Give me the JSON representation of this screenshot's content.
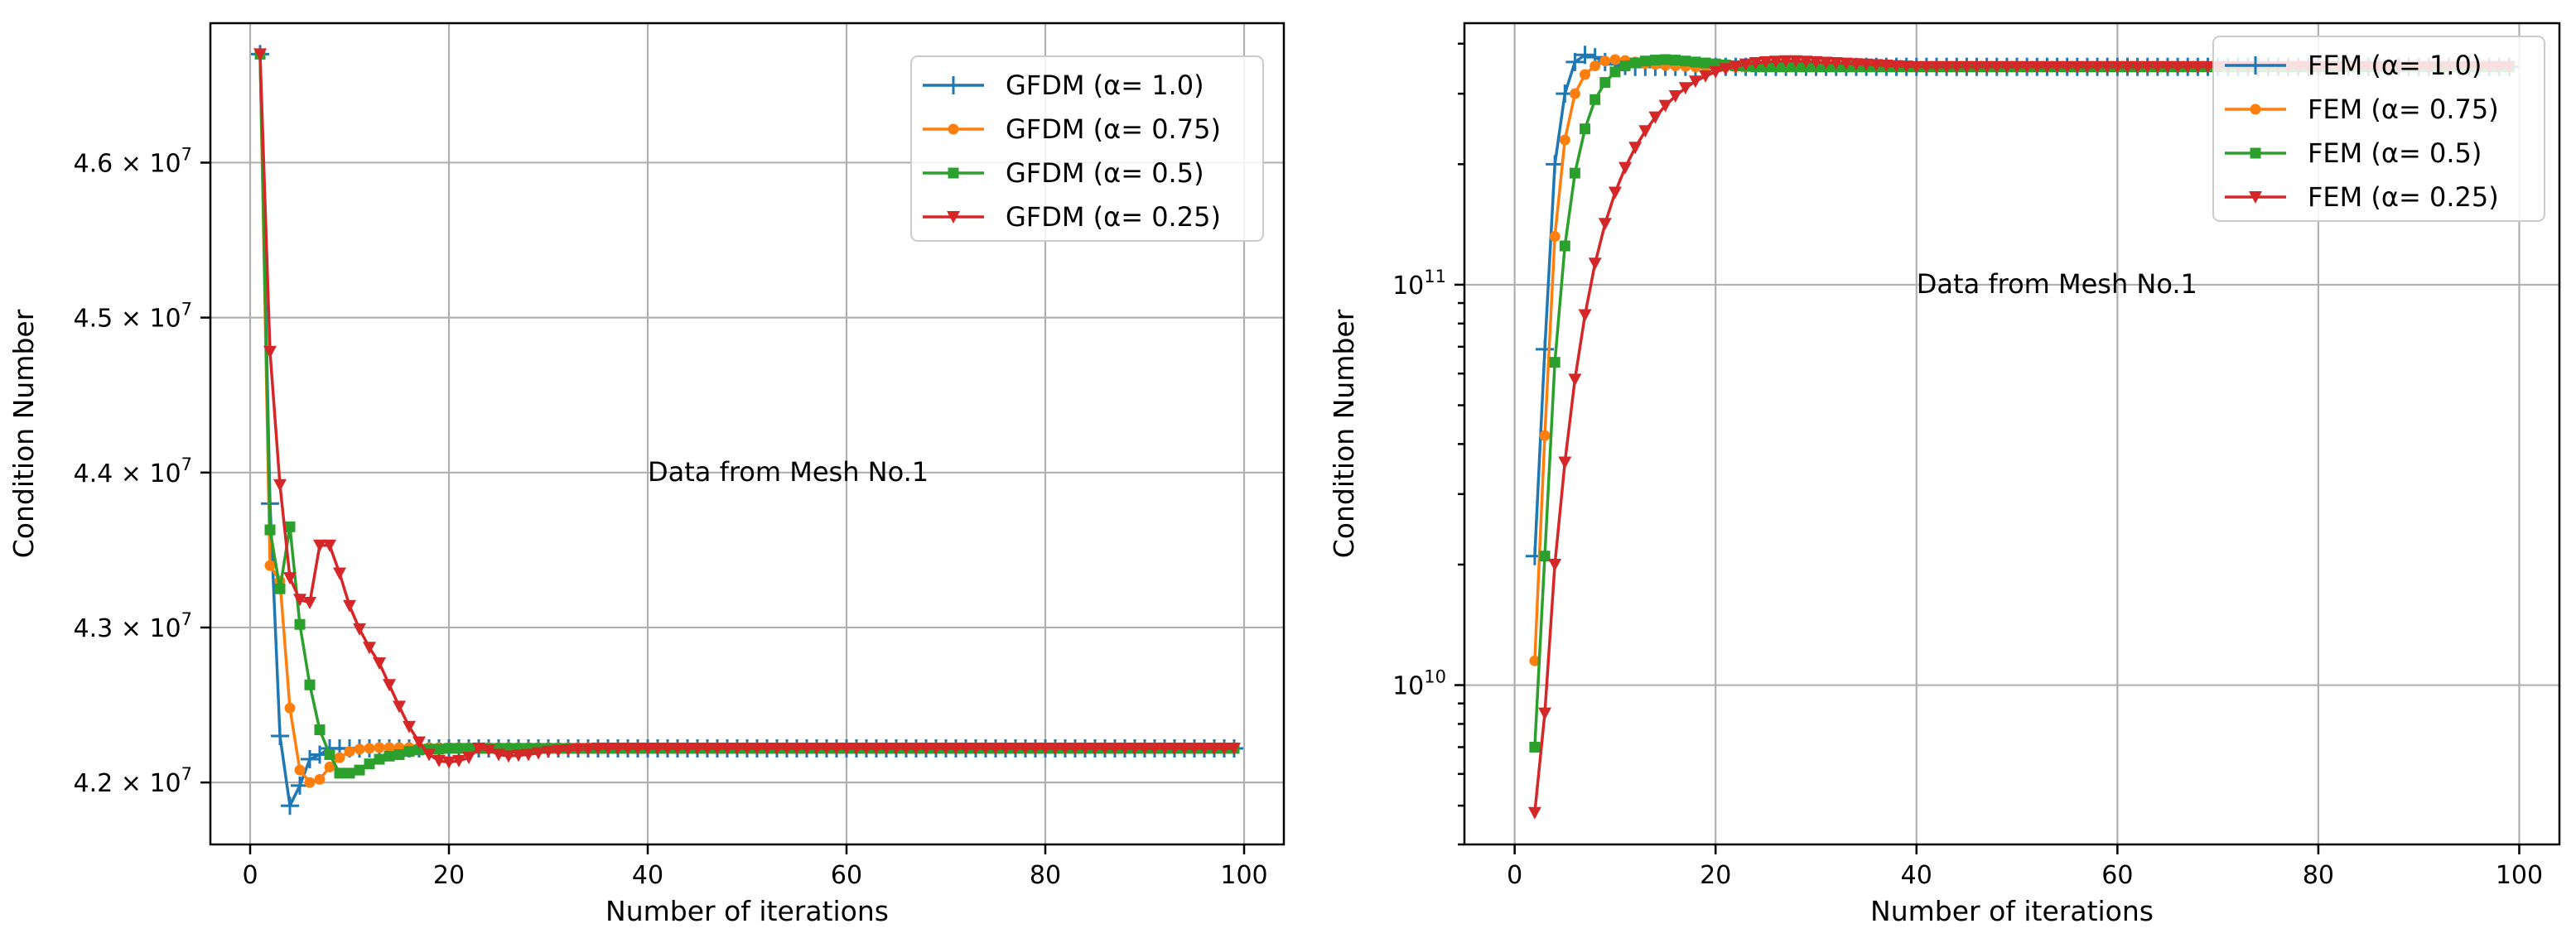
{
  "chart_data": [
    {
      "type": "line",
      "yscale": "linear",
      "xlabel": "Number of iterations",
      "ylabel": "Condition Number",
      "xlim": [
        -4,
        104
      ],
      "ylim": [
        41600000,
        46900000
      ],
      "xticks": [
        0,
        20,
        40,
        60,
        80,
        100
      ],
      "xtick_labels": [
        "0",
        "20",
        "40",
        "60",
        "80",
        "100"
      ],
      "yticks": [
        42000000,
        43000000,
        44000000,
        45000000,
        46000000
      ],
      "ytick_labels": [
        {
          "mantissa": "4.2",
          "exp": "7"
        },
        {
          "mantissa": "4.3",
          "exp": "7"
        },
        {
          "mantissa": "4.4",
          "exp": "7"
        },
        {
          "mantissa": "4.5",
          "exp": "7"
        },
        {
          "mantissa": "4.6",
          "exp": "7"
        }
      ],
      "tick_times": "×",
      "tick_base": "10",
      "grid": true,
      "legend_position": "upper right",
      "annotation": {
        "text": "Data from Mesh No.1",
        "x": 40,
        "y": 44000000
      },
      "x_start": 1,
      "x_end": 99,
      "series": [
        {
          "name": "GFDM (α= 1.0)",
          "color": "#1f77b4",
          "marker": "plus",
          "values": [
            46700000,
            43800000,
            42300000,
            41850000,
            41980000,
            42150000,
            42180000,
            42220000,
            42220000,
            42220000,
            42220000,
            42220000
          ],
          "steady": 42220000
        },
        {
          "name": "GFDM (α= 0.75)",
          "color": "#ff7f0e",
          "marker": "circle",
          "values": [
            46700000,
            43400000,
            43300000,
            42480000,
            42080000,
            42000000,
            42020000,
            42100000,
            42160000,
            42200000,
            42215000,
            42220000,
            42225000,
            42225000,
            42225000,
            42225000
          ],
          "steady": 42225000
        },
        {
          "name": "GFDM (α= 0.5)",
          "color": "#2ca02c",
          "marker": "square",
          "values": [
            46700000,
            43630000,
            43250000,
            43650000,
            43020000,
            42630000,
            42340000,
            42180000,
            42060000,
            42060000,
            42080000,
            42120000,
            42150000,
            42170000,
            42180000,
            42200000,
            42210000,
            42215000,
            42215000,
            42220000
          ],
          "steady": 42220000
        },
        {
          "name": "GFDM (α= 0.25)",
          "color": "#d62728",
          "marker": "triangle-down",
          "values": [
            46700000,
            44780000,
            43920000,
            43320000,
            43180000,
            43160000,
            43530000,
            43530000,
            43350000,
            43140000,
            42990000,
            42870000,
            42770000,
            42630000,
            42490000,
            42360000,
            42260000,
            42180000,
            42140000,
            42130000,
            42140000,
            42160000,
            42220000,
            42210000,
            42180000,
            42170000,
            42175000,
            42180000,
            42190000,
            42200000,
            42205000,
            42210000,
            42215000,
            42215000,
            42220000
          ],
          "steady": 42220000
        }
      ]
    },
    {
      "type": "line",
      "yscale": "log",
      "xlabel": "Number of iterations",
      "ylabel": "Condition Number",
      "xlim": [
        -5,
        104
      ],
      "ylim": [
        4000000000,
        450000000000
      ],
      "xticks": [
        0,
        20,
        40,
        60,
        80,
        100
      ],
      "xtick_labels": [
        "0",
        "20",
        "40",
        "60",
        "80",
        "100"
      ],
      "yticks": [
        10000000000,
        100000000000
      ],
      "ytick_labels": [
        {
          "base": "10",
          "exp": "10"
        },
        {
          "base": "10",
          "exp": "11"
        }
      ],
      "grid": true,
      "legend_position": "upper right",
      "annotation": {
        "text": "Data from Mesh No.1",
        "x": 40,
        "y": 100000000000
      },
      "x_start": 2,
      "x_end": 99,
      "series": [
        {
          "name": "FEM (α= 1.0)",
          "color": "#1f77b4",
          "marker": "plus",
          "values": [
            21000000000,
            69000000000,
            200000000000,
            300000000000,
            360000000000,
            375000000000,
            370000000000,
            360000000000,
            355000000000,
            352000000000,
            350000000000
          ],
          "steady": 350000000000
        },
        {
          "name": "FEM (α= 0.75)",
          "color": "#ff7f0e",
          "marker": "circle",
          "values": [
            11500000000,
            42000000000,
            132000000000,
            230000000000,
            300000000000,
            335000000000,
            352000000000,
            362000000000,
            365000000000,
            363000000000,
            360000000000,
            357000000000,
            355000000000,
            353000000000,
            352000000000,
            351000000000
          ],
          "steady": 350000000000
        },
        {
          "name": "FEM (α= 0.5)",
          "color": "#2ca02c",
          "marker": "square",
          "values": [
            7000000000,
            21000000000,
            64000000000,
            125000000000,
            190000000000,
            245000000000,
            290000000000,
            320000000000,
            340000000000,
            352000000000,
            358000000000,
            362000000000,
            364000000000,
            365000000000,
            364000000000,
            362000000000,
            360000000000,
            358000000000,
            356000000000,
            354000000000,
            352000000000,
            351000000000,
            350000000000
          ],
          "steady": 350000000000
        },
        {
          "name": "FEM (α= 0.25)",
          "color": "#d62728",
          "marker": "triangle-down",
          "values": [
            4800000000,
            8500000000,
            20000000000,
            36000000000,
            58000000000,
            84000000000,
            113000000000,
            142000000000,
            170000000000,
            196000000000,
            220000000000,
            242000000000,
            262000000000,
            280000000000,
            296000000000,
            310000000000,
            322000000000,
            332000000000,
            340000000000,
            346000000000,
            351000000000,
            355000000000,
            358000000000,
            360000000000,
            361000000000,
            362000000000,
            362000000000,
            361000000000,
            360000000000,
            359000000000,
            358000000000,
            357000000000,
            356000000000,
            355000000000,
            354000000000,
            353000000000,
            352000000000,
            351000000000
          ],
          "steady": 350000000000
        }
      ]
    }
  ]
}
